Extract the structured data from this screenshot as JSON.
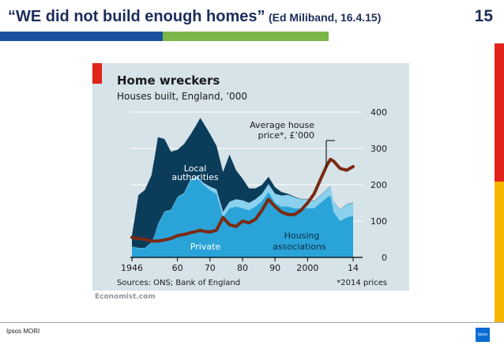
{
  "slide": {
    "title_main": "“WE did not build enough homes”",
    "title_sub": "(Ed Miliband, 16.4.15)",
    "page_number": "15",
    "footer": "Ipsos MORI",
    "logo_text": "Ipsos",
    "colors": {
      "navy": "#1c2c5b",
      "blue_band": "#1a4fa0",
      "green_band": "#7ab648",
      "sidebar_red": "#e2231a",
      "sidebar_yellow": "#f7b500"
    }
  },
  "chart_data": {
    "type": "area",
    "title": "Home wreckers",
    "subtitle": "Houses built, England, ’000",
    "x_tick_labels": [
      "1946",
      "60",
      "70",
      "80",
      "90",
      "2000",
      "14"
    ],
    "x_tick_values": [
      1946,
      1960,
      1970,
      1980,
      1990,
      2000,
      2014
    ],
    "y_ticks": [
      0,
      100,
      200,
      300,
      400
    ],
    "ylim": [
      0,
      400
    ],
    "xlim": [
      1946,
      2014
    ],
    "source": "Sources: ONS; Bank of England",
    "note": "*2014 prices",
    "credit": "Economist.com",
    "labels": {
      "local": [
        "Local",
        "authorities"
      ],
      "private": "Private",
      "housing": [
        "Housing",
        "associations"
      ],
      "price": [
        "Average house",
        "price*, £’000"
      ]
    },
    "colors": {
      "local": "#0b3d5a",
      "private": "#2aa3d8",
      "housing": "#8ad1ee",
      "price": "#7a2a12",
      "axis": "#000000",
      "grid": "#ffffff"
    },
    "years": [
      1946,
      1948,
      1950,
      1952,
      1953,
      1954,
      1956,
      1958,
      1960,
      1962,
      1964,
      1966,
      1967,
      1968,
      1970,
      1972,
      1974,
      1976,
      1978,
      1980,
      1982,
      1984,
      1986,
      1988,
      1990,
      1992,
      1994,
      1996,
      1998,
      2000,
      2002,
      2004,
      2006,
      2007,
      2008,
      2010,
      2012,
      2014
    ],
    "series": [
      {
        "name": "Private",
        "values": [
          30,
          25,
          25,
          40,
          60,
          90,
          125,
          130,
          165,
          175,
          210,
          220,
          210,
          200,
          185,
          175,
          110,
          135,
          140,
          135,
          130,
          140,
          155,
          180,
          150,
          140,
          140,
          135,
          135,
          135,
          135,
          150,
          165,
          170,
          125,
          100,
          110,
          115
        ]
      },
      {
        "name": "Housing associations",
        "values": [
          0,
          1,
          1,
          1,
          1,
          1,
          1,
          1,
          1,
          2,
          3,
          3,
          4,
          5,
          10,
          12,
          15,
          18,
          20,
          22,
          20,
          20,
          20,
          22,
          25,
          30,
          32,
          30,
          25,
          25,
          20,
          20,
          22,
          25,
          28,
          30,
          35,
          35
        ]
      },
      {
        "name": "Local authorities",
        "values": [
          30,
          145,
          160,
          185,
          215,
          240,
          200,
          160,
          130,
          135,
          125,
          145,
          170,
          165,
          145,
          120,
          110,
          130,
          80,
          60,
          40,
          30,
          25,
          20,
          18,
          10,
          3,
          2,
          1,
          1,
          1,
          1,
          1,
          1,
          1,
          1,
          1,
          1
        ]
      },
      {
        "name": "Average house price*, £’000",
        "values": [
          55,
          52,
          50,
          45,
          45,
          45,
          48,
          52,
          60,
          63,
          68,
          72,
          75,
          72,
          70,
          75,
          110,
          90,
          85,
          100,
          95,
          105,
          130,
          160,
          140,
          125,
          118,
          118,
          130,
          150,
          175,
          215,
          255,
          270,
          265,
          245,
          240,
          250
        ]
      }
    ]
  }
}
